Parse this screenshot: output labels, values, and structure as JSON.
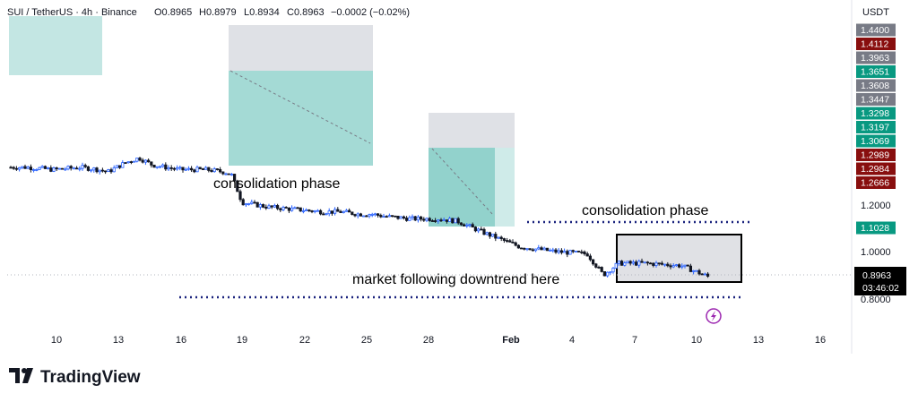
{
  "header": {
    "symbol": "SUI / TetherUS · 4h · Binance",
    "open": "O0.8965",
    "high": "H0.8979",
    "low": "L0.8934",
    "close": "C0.8963",
    "change": "−0.0002 (−0.02%)"
  },
  "currency": "USDT",
  "annotations": {
    "consolidation_1": "consolidation phase",
    "consolidation_2": "consolidation phase",
    "downtrend": "market following downtrend here"
  },
  "current_price": {
    "value": "0.8963",
    "countdown": "03:46:02"
  },
  "brand": "TradingView",
  "colors": {
    "up": "#26a69a",
    "down": "#131722",
    "zone_green": "#26a69a",
    "zone_gray": "#d1d4dc",
    "red_label": "#880e0e",
    "gray_label": "#787b86",
    "green_label": "#089981",
    "dark_label": "#131722"
  },
  "chart_data": {
    "type": "line",
    "title": "SUI / TetherUS · 4h · Binance",
    "ylabel": "USDT",
    "ylim": [
      0.77,
      1.47
    ],
    "y_ticks": [
      0.8,
      1.0,
      1.2
    ],
    "x_ticks": [
      "10",
      "13",
      "16",
      "19",
      "22",
      "25",
      "28",
      "Feb",
      "4",
      "7",
      "10",
      "13",
      "16"
    ],
    "x": [
      0,
      1,
      2,
      3,
      4,
      5,
      6,
      7,
      8,
      9,
      10,
      11,
      12,
      13,
      14,
      15,
      16,
      17,
      18,
      19,
      20,
      21,
      22,
      23,
      24,
      25,
      26,
      27,
      28,
      29,
      30,
      31,
      32,
      33,
      34
    ],
    "series": [
      {
        "values": [
          1.36,
          1.36,
          1.35,
          1.36,
          1.35,
          1.34,
          1.38,
          1.4,
          1.37,
          1.35,
          1.35,
          1.34,
          1.33,
          1.21,
          1.19,
          1.18,
          1.17,
          1.17,
          1.16,
          1.16,
          1.15,
          1.14,
          1.14,
          1.14,
          1.13,
          1.08,
          1.05,
          1.02,
          1.0,
          0.99,
          0.9,
          0.95,
          0.95,
          0.94,
          0.89
        ]
      }
    ],
    "price_labels": [
      {
        "value": "1.4400",
        "style": "gray"
      },
      {
        "value": "1.4112",
        "style": "red"
      },
      {
        "value": "1.3963",
        "style": "gray"
      },
      {
        "value": "1.3651",
        "style": "green"
      },
      {
        "value": "1.3608",
        "style": "gray"
      },
      {
        "value": "1.3447",
        "style": "gray"
      },
      {
        "value": "1.3298",
        "style": "green"
      },
      {
        "value": "1.3197",
        "style": "green"
      },
      {
        "value": "1.3069",
        "style": "green"
      },
      {
        "value": "1.2989",
        "style": "red"
      },
      {
        "value": "1.2984",
        "style": "red"
      },
      {
        "value": "1.2666",
        "style": "red"
      },
      {
        "value": "1.1028",
        "style": "green"
      }
    ],
    "grid": false,
    "legend": "none"
  }
}
